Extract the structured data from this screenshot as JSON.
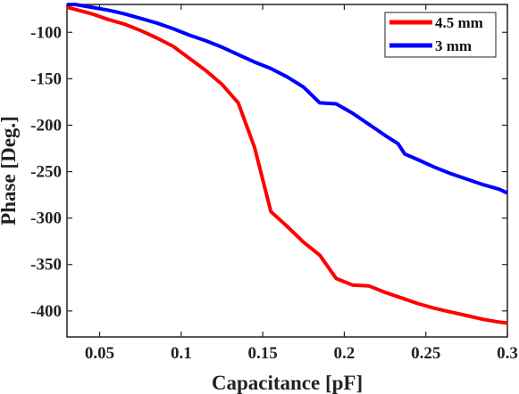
{
  "chart_data": {
    "type": "line",
    "xlabel": "Capacitance [pF]",
    "ylabel": "Phase [Deg.]",
    "xlim": [
      0.03,
      0.3
    ],
    "ylim": [
      -428,
      -70
    ],
    "x_ticks": [
      0.05,
      0.1,
      0.15,
      0.2,
      0.25,
      0.3
    ],
    "x_tick_labels": [
      "0.05",
      "0.1",
      "0.15",
      "0.2",
      "0.25",
      "0.3"
    ],
    "y_ticks": [
      -100,
      -150,
      -200,
      -250,
      -300,
      -350,
      -400
    ],
    "y_tick_labels": [
      "-100",
      "-150",
      "-200",
      "-250",
      "-300",
      "-350",
      "-400"
    ],
    "grid": false,
    "legend_position": "top-right",
    "series": [
      {
        "name": "4.5 mm",
        "color": "#ff0000",
        "x": [
          0.03,
          0.045,
          0.055,
          0.065,
          0.075,
          0.085,
          0.095,
          0.105,
          0.115,
          0.125,
          0.135,
          0.145,
          0.155,
          0.165,
          0.175,
          0.185,
          0.195,
          0.205,
          0.215,
          0.225,
          0.235,
          0.245,
          0.255,
          0.265,
          0.275,
          0.285,
          0.295,
          0.3
        ],
        "y": [
          -73,
          -80,
          -86,
          -91,
          -98,
          -106,
          -115,
          -128,
          -141,
          -156,
          -176,
          -224,
          -293,
          -309,
          -326,
          -340,
          -365,
          -372,
          -373,
          -380,
          -386,
          -392,
          -397,
          -401,
          -405,
          -409,
          -412,
          -413
        ]
      },
      {
        "name": "3 mm",
        "color": "#0000ff",
        "x": [
          0.03,
          0.035,
          0.045,
          0.055,
          0.065,
          0.075,
          0.085,
          0.095,
          0.105,
          0.115,
          0.125,
          0.135,
          0.145,
          0.155,
          0.165,
          0.175,
          0.185,
          0.195,
          0.205,
          0.215,
          0.225,
          0.233,
          0.237,
          0.245,
          0.255,
          0.265,
          0.275,
          0.285,
          0.295,
          0.3
        ],
        "y": [
          -70,
          -70,
          -73,
          -76,
          -80,
          -85,
          -90,
          -96,
          -103,
          -109,
          -116,
          -124,
          -132,
          -139,
          -148,
          -159,
          -176,
          -177,
          -187,
          -199,
          -211,
          -220,
          -231,
          -237,
          -245,
          -252,
          -258,
          -264,
          -269,
          -273
        ]
      }
    ]
  }
}
